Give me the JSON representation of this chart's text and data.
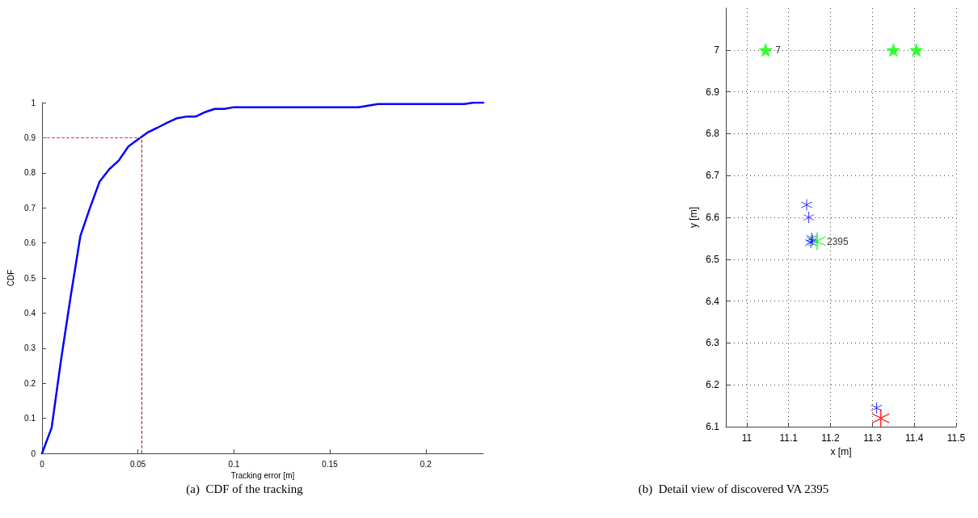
{
  "chart_data": [
    {
      "type": "line",
      "title": "(a)  CDF of the tracking",
      "xlabel": "Tracking error [m]",
      "ylabel": "CDF",
      "x": [
        0,
        0.005,
        0.01,
        0.015,
        0.02,
        0.025,
        0.03,
        0.035,
        0.04,
        0.045,
        0.05,
        0.055,
        0.06,
        0.065,
        0.07,
        0.075,
        0.08,
        0.085,
        0.09,
        0.095,
        0.1,
        0.165,
        0.175,
        0.22,
        0.225,
        0.23
      ],
      "series": [
        {
          "color": "#0000ff",
          "values": [
            0,
            0.073,
            0.27,
            0.45,
            0.62,
            0.7,
            0.775,
            0.81,
            0.835,
            0.875,
            0.895,
            0.915,
            0.928,
            0.942,
            0.955,
            0.96,
            0.96,
            0.973,
            0.982,
            0.982,
            0.987,
            0.987,
            0.996,
            0.996,
            1,
            1
          ]
        }
      ],
      "xlim": [
        0,
        0.23
      ],
      "xticks": [
        0,
        0.05,
        0.1,
        0.15,
        0.2
      ],
      "ylim": [
        0,
        1
      ],
      "yticks": [
        0,
        0.1,
        0.2,
        0.3,
        0.4,
        0.5,
        0.6,
        0.7,
        0.8,
        0.9,
        1
      ],
      "ref_lines": [
        {
          "axis": "y",
          "value": 0.9,
          "color": "#ff3333",
          "line_style": "dashed"
        },
        {
          "axis": "x",
          "value": 0.052,
          "color": "#a02020",
          "line_style": "dashed"
        }
      ],
      "grid": false,
      "marker": "none",
      "line_style": "solid"
    },
    {
      "type": "scatter",
      "title": "(b)  Detail view of discovered VA 2395",
      "xlabel": "x [m]",
      "ylabel": "y [m]",
      "series": [
        {
          "color": "#00ff00",
          "marker": "star",
          "x": [
            11.045,
            11.35,
            11.405
          ],
          "values": [
            7,
            7,
            7
          ]
        },
        {
          "color": "#0000ff",
          "marker": "cross",
          "x": [
            11.143,
            11.148,
            11.153,
            11.155,
            11.157,
            11.31
          ],
          "values": [
            6.63,
            6.6,
            6.54,
            6.55,
            6.545,
            6.145
          ]
        },
        {
          "color": "#00ff00",
          "marker": "cross",
          "x": [
            11.168
          ],
          "values": [
            6.543
          ]
        },
        {
          "color": "#ff0000",
          "marker": "cross",
          "x": [
            11.32
          ],
          "values": [
            6.12
          ]
        }
      ],
      "annotations": [
        {
          "text": "7",
          "x": 11.045,
          "y": 7
        },
        {
          "text": "2395",
          "x": 11.168,
          "y": 6.543
        }
      ],
      "xlim": [
        10.95,
        11.5
      ],
      "xticks": [
        11,
        11.1,
        11.2,
        11.3,
        11.4,
        11.5
      ],
      "ylim": [
        6.1,
        7.1
      ],
      "yticks": [
        6.1,
        6.2,
        6.3,
        6.4,
        6.5,
        6.6,
        6.7,
        6.8,
        6.9,
        7
      ],
      "grid": true
    }
  ]
}
